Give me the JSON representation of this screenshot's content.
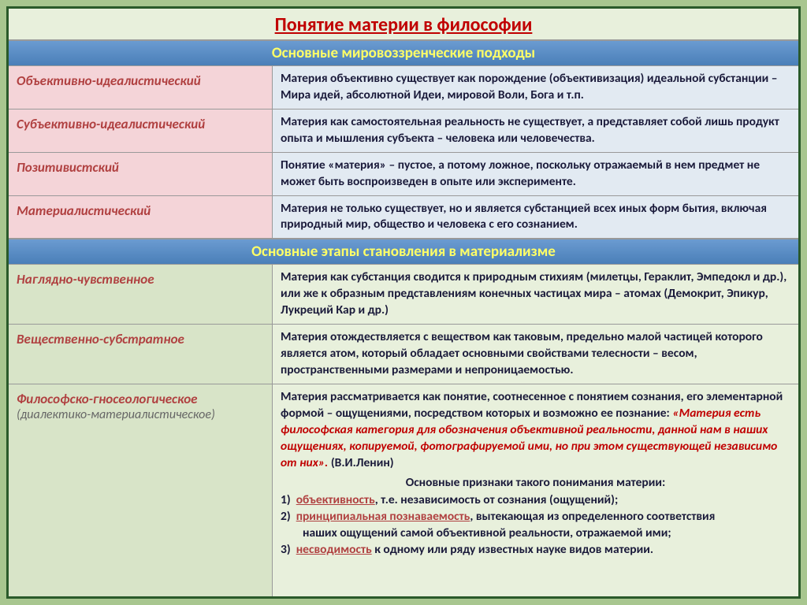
{
  "colors": {
    "frame_bg": "#e8f0dc",
    "border": "#2a5a2a",
    "title_color": "#c00000",
    "header_bg_from": "#6b9bd1",
    "header_bg_to": "#4a7fb8",
    "header_text": "#ffff66",
    "left_pink": "#f4d4d8",
    "left_green": "#d8e4c8",
    "left_text": "#b04040",
    "right_blue": "#e2eaf2",
    "right_green": "#e8f0dc",
    "body_text": "#1a1a3a",
    "quote_color": "#c00000",
    "key_color": "#b04040"
  },
  "typography": {
    "title_size_pt": 24,
    "header_size_pt": 19,
    "left_size_pt": 17,
    "body_size_pt": 15.5,
    "font_family": "Calibri"
  },
  "title": "Понятие материи в философии",
  "section1": {
    "header": "Основные мировоззренческие подходы",
    "rows": [
      {
        "label": "Объективно-идеалистический",
        "text": "Материя объективно существует как порождение (объективизация) идеальной субстанции – Мира идей,  абсолютной Идеи, мировой Воли, Бога и т.п."
      },
      {
        "label": "Субъективно-идеалистический",
        "text": "Материя как самостоятельная реальность не существует, а представляет собой лишь продукт  опыта и мышления субъекта – человека или человечества."
      },
      {
        "label": "Позитивистский",
        "text": "Понятие «материя» – пустое, а потому ложное, поскольку отражаемый в нем предмет не может быть воспроизведен в опыте или эксперименте."
      },
      {
        "label": "Материалистический",
        "text": "Материя не только существует, но и является субстанцией всех иных форм  бытия, включая природный  мир, общество и человека с его сознанием."
      }
    ]
  },
  "section2": {
    "header": "Основные этапы становления в материализме",
    "rows": [
      {
        "label": "Наглядно-чувственное",
        "text": "Материя как субстанция сводится к природным стихиям (милетцы, Гераклит, Эмпедокл и др.), или же к образным представлениям конечных частицах мира – атомах (Демокрит, Эпикур, Лукреций Кар и др.)"
      },
      {
        "label": "Вещественно-субстратное",
        "text": "Материя отождествляется с веществом как таковым, предельно малой частицей которого является атом, который обладает основными свойствами телесности – весом, пространственными размерами и непроницаемостью."
      }
    ],
    "row3": {
      "label": "Философско-гносеологическое",
      "sub": "(диалектико-материалистическое)",
      "intro": "Материя рассматривается как понятие, соотнесенное с понятием сознания, его элементарной формой – ощущениями, посредством которых и возможно ее познание: ",
      "quote": "«Материя есть философская категория для обозначения объективной реальности, данной нам в наших ощущениях, копируемой, фотографируемой ими, но при этом существующей независимо от них».",
      "cite": " (В.И.Ленин)",
      "subhead": "Основные признаки такого понимания материи:",
      "items": [
        {
          "num": "1)",
          "key": "объективность",
          "rest": ", т.е. независимость от сознания (ощущений);"
        },
        {
          "num": "2)",
          "key": "принципиальная познаваемость",
          "rest": ", вытекающая из определенного соответствия",
          "cont": "наших  ощущений  самой объективной реальности, отражаемой ими;"
        },
        {
          "num": "3)",
          "key": "несводимость",
          "rest": " к одному или ряду известных науке видов материи."
        }
      ]
    }
  }
}
